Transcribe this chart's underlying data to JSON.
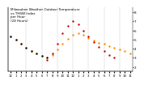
{
  "title": "Milwaukee Weather Outdoor Temperature\nvs THSW Index\nper Hour\n(24 Hours)",
  "title_fontsize": 3.0,
  "bg_color": "#ffffff",
  "x_ticks": [
    0,
    1,
    2,
    3,
    4,
    5,
    6,
    7,
    8,
    9,
    10,
    11,
    12,
    13,
    14,
    15,
    16,
    17,
    18,
    19,
    20,
    21,
    22,
    23
  ],
  "x_tick_labels": [
    "12",
    "1",
    "2",
    "3",
    "4",
    "5",
    "6",
    "7",
    "8",
    "9",
    "10",
    "11",
    "12",
    "1",
    "2",
    "3",
    "4",
    "5",
    "6",
    "7",
    "8",
    "9",
    "10",
    "11"
  ],
  "xlim": [
    -0.5,
    23.5
  ],
  "ylim": [
    20,
    90
  ],
  "y_ticks_right": [
    25,
    35,
    45,
    55,
    65,
    75,
    85
  ],
  "y_tick_labels_right": [
    "2",
    "3",
    "4",
    "5",
    "6",
    "7",
    "8"
  ],
  "grid_x": [
    3,
    6,
    9,
    12,
    15,
    18,
    21
  ],
  "temp_x": [
    0,
    1,
    2,
    3,
    4,
    5,
    6,
    7,
    8,
    9,
    10,
    11,
    12,
    13,
    14,
    15,
    16,
    17,
    18,
    19,
    20,
    21,
    22,
    23
  ],
  "temp_y": [
    58,
    55,
    50,
    46,
    42,
    40,
    37,
    35,
    38,
    44,
    50,
    56,
    60,
    62,
    60,
    57,
    54,
    51,
    50,
    48,
    46,
    44,
    42,
    40
  ],
  "thsw_x": [
    7,
    8,
    9,
    10,
    11,
    12,
    13,
    14,
    15,
    16,
    17,
    18,
    19,
    20
  ],
  "thsw_y": [
    33,
    40,
    50,
    62,
    70,
    75,
    72,
    65,
    58,
    52,
    47,
    42,
    38,
    35
  ],
  "black_x": [
    0,
    1,
    2,
    3,
    4,
    5,
    6,
    7
  ],
  "black_y": [
    58,
    55,
    50,
    46,
    42,
    40,
    37,
    35
  ],
  "temp_color": "#ff8c00",
  "thsw_color": "#cc0000",
  "black_color": "#111111",
  "marker_size": 3,
  "ylabel_fontsize": 3,
  "xlabel_fontsize": 2.8,
  "right_y_color": "#555555"
}
